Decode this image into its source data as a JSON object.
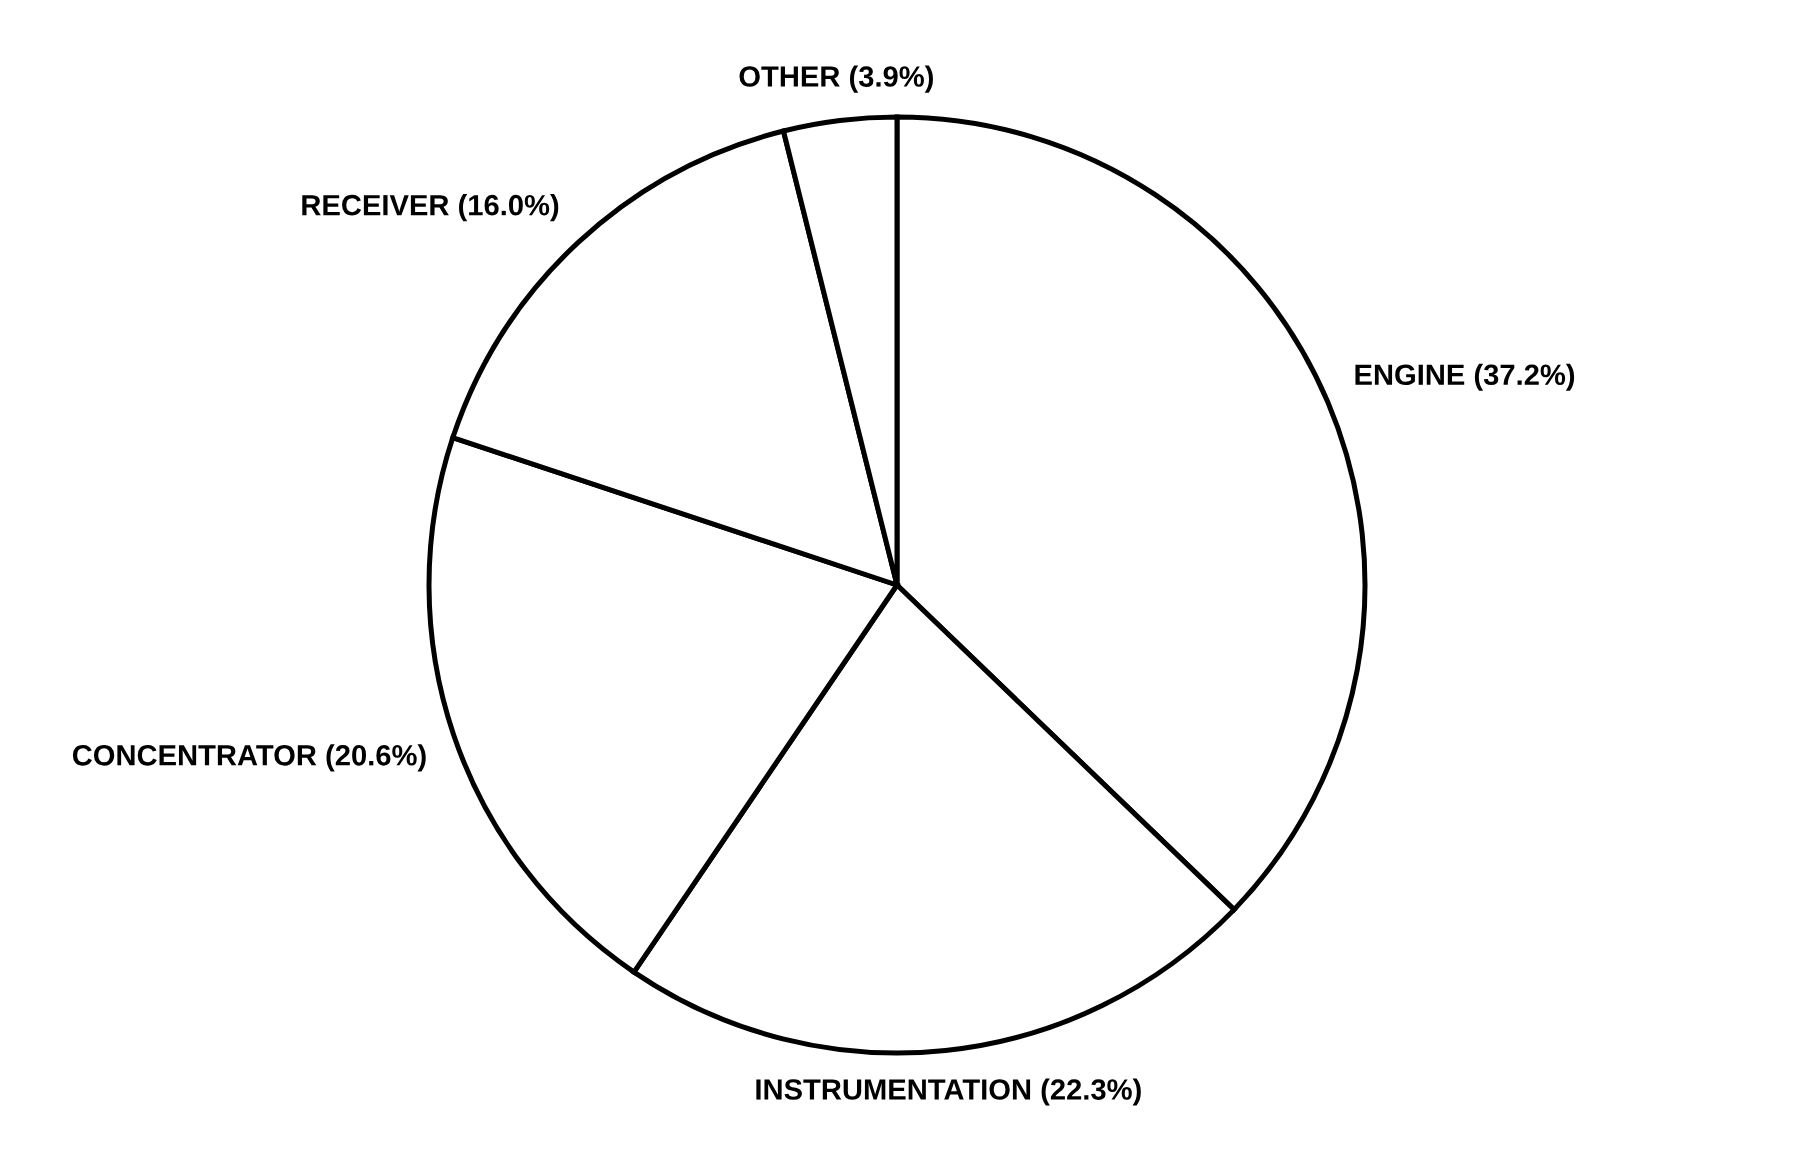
{
  "chart_data": {
    "type": "pie",
    "categories": [
      "ENGINE",
      "INSTRUMENTATION",
      "CONCENTRATOR",
      "RECEIVER",
      "OTHER"
    ],
    "values": [
      37.2,
      22.3,
      20.6,
      16.0,
      3.9
    ],
    "value_labels": [
      "(37.2%)",
      "(22.3%)",
      "(20.6%)",
      "(16.0%)",
      "(3.9%)"
    ],
    "colors": [
      "#ffffff",
      "#ffffff",
      "#ffffff",
      "#ffffff",
      "#ffffff"
    ],
    "legend": false
  }
}
